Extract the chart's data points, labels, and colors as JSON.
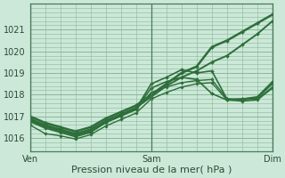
{
  "bg_color": "#cce8d8",
  "grid_color": "#88b898",
  "line_color": "#2d6e3a",
  "marker_color": "#2d6e3a",
  "xlabel": "Pression niveau de la mer( hPa )",
  "xtick_labels": [
    "Ven",
    "Sam",
    "Dim"
  ],
  "xtick_positions": [
    0,
    48,
    96
  ],
  "ylim": [
    1015.4,
    1022.2
  ],
  "yticks": [
    1016,
    1017,
    1018,
    1019,
    1020,
    1021
  ],
  "total_hours": 96,
  "lines": [
    {
      "x": [
        0,
        6,
        12,
        18,
        24,
        30,
        36,
        42,
        48,
        54,
        60,
        66,
        72,
        78,
        84,
        90,
        96
      ],
      "y": [
        1017.0,
        1016.7,
        1016.5,
        1016.3,
        1016.5,
        1016.9,
        1017.2,
        1017.5,
        1018.0,
        1018.5,
        1019.0,
        1019.3,
        1020.2,
        1020.5,
        1020.9,
        1021.3,
        1021.7
      ],
      "lw": 1.8,
      "ms": 2.0
    },
    {
      "x": [
        0,
        6,
        12,
        18,
        24,
        30,
        36,
        42,
        48,
        54,
        60,
        66,
        72,
        78,
        84,
        90,
        96
      ],
      "y": [
        1016.9,
        1016.6,
        1016.4,
        1016.2,
        1016.4,
        1016.8,
        1017.1,
        1017.4,
        1017.9,
        1018.4,
        1018.8,
        1019.1,
        1019.5,
        1019.8,
        1020.3,
        1020.8,
        1021.4
      ],
      "lw": 1.4,
      "ms": 2.0
    },
    {
      "x": [
        0,
        6,
        12,
        18,
        24,
        30,
        36,
        42,
        48,
        54,
        60,
        66,
        72,
        78,
        84,
        90,
        96
      ],
      "y": [
        1016.85,
        1016.55,
        1016.35,
        1016.15,
        1016.35,
        1016.75,
        1017.05,
        1017.35,
        1018.5,
        1018.8,
        1019.15,
        1019.0,
        1019.1,
        1017.8,
        1017.8,
        1017.9,
        1018.6
      ],
      "lw": 1.2,
      "ms": 2.0
    },
    {
      "x": [
        0,
        6,
        12,
        18,
        24,
        30,
        36,
        42,
        48,
        54,
        60,
        66,
        72,
        78,
        84,
        90,
        96
      ],
      "y": [
        1016.8,
        1016.5,
        1016.3,
        1016.1,
        1016.3,
        1016.75,
        1017.05,
        1017.35,
        1018.3,
        1018.6,
        1018.8,
        1018.7,
        1018.05,
        1017.75,
        1017.8,
        1017.85,
        1018.5
      ],
      "lw": 1.2,
      "ms": 2.0
    },
    {
      "x": [
        0,
        6,
        12,
        18,
        24,
        30,
        36,
        42,
        48,
        54,
        60,
        66,
        72,
        78,
        84,
        90,
        96
      ],
      "y": [
        1016.75,
        1016.45,
        1016.25,
        1016.05,
        1016.25,
        1016.7,
        1017.0,
        1017.3,
        1018.1,
        1018.35,
        1018.55,
        1018.65,
        1018.7,
        1017.8,
        1017.75,
        1017.8,
        1018.35
      ],
      "lw": 1.0,
      "ms": 1.8
    },
    {
      "x": [
        0,
        6,
        12,
        18,
        24,
        30,
        36,
        42,
        48,
        54,
        60,
        66,
        72,
        78,
        84,
        90,
        96
      ],
      "y": [
        1016.6,
        1016.2,
        1016.1,
        1015.95,
        1016.15,
        1016.55,
        1016.85,
        1017.15,
        1017.8,
        1018.1,
        1018.35,
        1018.5,
        1018.55,
        1017.75,
        1017.7,
        1017.75,
        1018.3
      ],
      "lw": 1.0,
      "ms": 1.8
    }
  ]
}
